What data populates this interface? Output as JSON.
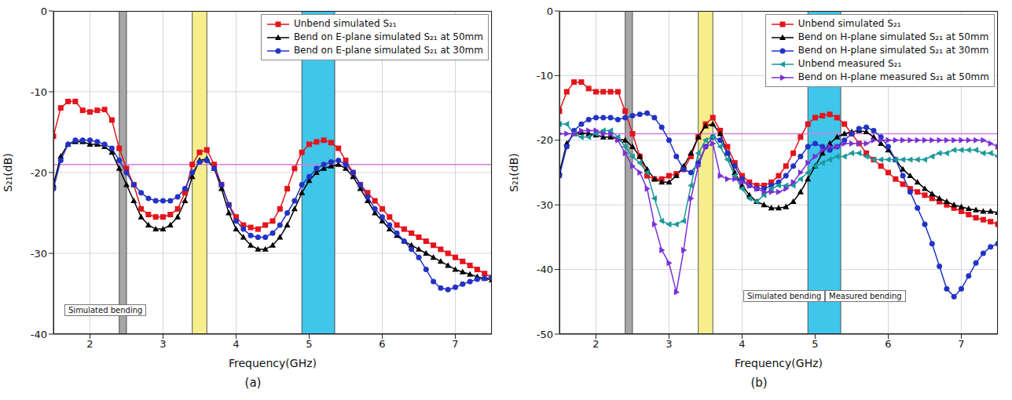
{
  "chart_data": [
    {
      "type": "line",
      "caption": "(a)",
      "xlabel": "Frequency(GHz)",
      "ylabel": "S₂₁(dB)",
      "x": [
        1.5,
        1.6,
        1.7,
        1.8,
        1.9,
        2.0,
        2.1,
        2.2,
        2.3,
        2.4,
        2.5,
        2.6,
        2.7,
        2.8,
        2.9,
        3.0,
        3.1,
        3.2,
        3.3,
        3.4,
        3.5,
        3.6,
        3.7,
        3.8,
        3.9,
        4.0,
        4.1,
        4.2,
        4.3,
        4.4,
        4.5,
        4.6,
        4.7,
        4.8,
        4.9,
        5.0,
        5.1,
        5.2,
        5.3,
        5.4,
        5.5,
        5.6,
        5.7,
        5.8,
        5.9,
        6.0,
        6.1,
        6.2,
        6.3,
        6.4,
        6.5,
        6.6,
        6.7,
        6.8,
        6.9,
        7.0,
        7.1,
        7.2,
        7.3,
        7.4,
        7.5
      ],
      "xlim": [
        1.5,
        7.5
      ],
      "xticks": [
        2,
        3,
        4,
        5,
        6,
        7
      ],
      "ylim": [
        -40,
        0
      ],
      "yticks": [
        -40,
        -30,
        -20,
        -10,
        0
      ],
      "grid": true,
      "legend": "upper right",
      "bands": [
        {
          "x0": 2.4,
          "x1": 2.5,
          "color": "#a6a6a6"
        },
        {
          "x0": 3.4,
          "x1": 3.6,
          "color": "#f6ee8c"
        },
        {
          "x0": 4.9,
          "x1": 5.35,
          "color": "#40c6ea"
        }
      ],
      "reference_lines": [
        {
          "y": -19,
          "color": "#d37fe0"
        }
      ],
      "annotations": [
        "Simulated bending"
      ],
      "series": [
        {
          "name": "Unbend simulated S₂₁",
          "color": "#e3141c",
          "marker": "square",
          "values": [
            -15.5,
            -12,
            -11.2,
            -11.2,
            -12.3,
            -12.5,
            -12.3,
            -12.2,
            -13.5,
            -17,
            -19.5,
            -21.5,
            -24.5,
            -25.2,
            -25.5,
            -25.5,
            -25.2,
            -24.5,
            -22.5,
            -19,
            -17.5,
            -17.2,
            -19,
            -21.5,
            -24,
            -25.5,
            -26.5,
            -26.8,
            -27,
            -26.5,
            -26,
            -24.5,
            -22,
            -19.5,
            -17.5,
            -16.5,
            -16.2,
            -16,
            -16.3,
            -17,
            -18.5,
            -20,
            -21.5,
            -22.5,
            -23.5,
            -24.5,
            -25.5,
            -26.5,
            -27,
            -27.5,
            -28,
            -28.5,
            -29,
            -29.5,
            -30,
            -30.5,
            -31,
            -31.5,
            -32,
            -32.5,
            -33
          ]
        },
        {
          "name": "Bend on E-plane simulated S₂₁ at 50mm",
          "color": "#000000",
          "marker": "triangle",
          "values": [
            -21.5,
            -18,
            -16.5,
            -16.2,
            -16.2,
            -16.5,
            -16.5,
            -16.8,
            -17.5,
            -19.5,
            -21.5,
            -23.5,
            -25.5,
            -26.5,
            -27,
            -27,
            -26.5,
            -25.5,
            -23.5,
            -20.5,
            -18.5,
            -18.3,
            -19.5,
            -22,
            -25,
            -27,
            -28,
            -29,
            -29.5,
            -29.5,
            -29,
            -28,
            -26.5,
            -24.5,
            -22.5,
            -21,
            -20,
            -19.5,
            -19.2,
            -19,
            -19.5,
            -20.5,
            -22,
            -23.5,
            -25,
            -26,
            -27,
            -27.8,
            -28.5,
            -29,
            -29.5,
            -30,
            -30.5,
            -31,
            -31.5,
            -32,
            -32.3,
            -32.6,
            -32.9,
            -33.1,
            -33.3
          ]
        },
        {
          "name": "Bend on E-plane simulated S₂₁ at 30mm",
          "color": "#2233c4",
          "marker": "circle",
          "values": [
            -22,
            -18.5,
            -16.5,
            -16,
            -16,
            -16,
            -16.2,
            -16.5,
            -17,
            -18.5,
            -20,
            -21.5,
            -22.5,
            -23.2,
            -23.5,
            -23.5,
            -23.5,
            -23,
            -22,
            -20,
            -18.7,
            -18.5,
            -19.5,
            -21.5,
            -24,
            -26,
            -27,
            -27.8,
            -28,
            -28,
            -27.5,
            -26.5,
            -25,
            -23.5,
            -21.5,
            -20.5,
            -19.5,
            -19,
            -18.7,
            -18.5,
            -19,
            -20,
            -21.5,
            -23,
            -24.5,
            -25.5,
            -26.5,
            -27.5,
            -28.5,
            -29.5,
            -30.5,
            -32,
            -33.5,
            -34.3,
            -34.5,
            -34.2,
            -33.8,
            -33.5,
            -33.2,
            -33.1,
            -33
          ]
        }
      ]
    },
    {
      "type": "line",
      "caption": "(b)",
      "xlabel": "Frequency(GHz)",
      "ylabel": "S₂₁(dB)",
      "x": [
        1.5,
        1.6,
        1.7,
        1.8,
        1.9,
        2.0,
        2.1,
        2.2,
        2.3,
        2.4,
        2.5,
        2.6,
        2.7,
        2.8,
        2.9,
        3.0,
        3.1,
        3.2,
        3.3,
        3.4,
        3.5,
        3.6,
        3.7,
        3.8,
        3.9,
        4.0,
        4.1,
        4.2,
        4.3,
        4.4,
        4.5,
        4.6,
        4.7,
        4.8,
        4.9,
        5.0,
        5.1,
        5.2,
        5.3,
        5.4,
        5.5,
        5.6,
        5.7,
        5.8,
        5.9,
        6.0,
        6.1,
        6.2,
        6.3,
        6.4,
        6.5,
        6.6,
        6.7,
        6.8,
        6.9,
        7.0,
        7.1,
        7.2,
        7.3,
        7.4,
        7.5
      ],
      "xlim": [
        1.5,
        7.5
      ],
      "xticks": [
        2,
        3,
        4,
        5,
        6,
        7
      ],
      "ylim": [
        -50,
        0
      ],
      "yticks": [
        -50,
        -40,
        -30,
        -20,
        -10,
        0
      ],
      "grid": true,
      "legend": "upper right",
      "bands": [
        {
          "x0": 2.4,
          "x1": 2.5,
          "color": "#a6a6a6"
        },
        {
          "x0": 3.4,
          "x1": 3.6,
          "color": "#f6ee8c"
        },
        {
          "x0": 4.9,
          "x1": 5.35,
          "color": "#40c6ea"
        }
      ],
      "reference_lines": [
        {
          "y": -19,
          "color": "#d37fe0"
        }
      ],
      "annotations": [
        "Simulated bending",
        "Measured bending"
      ],
      "series": [
        {
          "name": "Unbend simulated S₂₁",
          "color": "#e3141c",
          "marker": "square",
          "values": [
            -15.5,
            -12.5,
            -11,
            -11,
            -12,
            -12.5,
            -12.5,
            -12.5,
            -12.5,
            -15.5,
            -19,
            -22.5,
            -25.5,
            -26,
            -26,
            -25.5,
            -25.2,
            -24.5,
            -22.5,
            -19.5,
            -17.5,
            -16.5,
            -18.5,
            -21,
            -23.5,
            -25.5,
            -26.5,
            -27,
            -27,
            -26.5,
            -25.5,
            -24,
            -22,
            -19.5,
            -17.5,
            -16.5,
            -16.2,
            -16,
            -16.5,
            -17.5,
            -19,
            -20.5,
            -22,
            -23,
            -24,
            -25,
            -26,
            -26.8,
            -27.5,
            -28,
            -28.5,
            -29,
            -29.5,
            -30,
            -30.5,
            -31,
            -31.5,
            -32,
            -32.3,
            -32.6,
            -33
          ]
        },
        {
          "name": "Bend on H-plane simulated S₂₁ at 50mm",
          "color": "#000000",
          "marker": "triangle",
          "values": [
            -25,
            -20.5,
            -19,
            -18.8,
            -19,
            -19.2,
            -19.5,
            -19.5,
            -19.8,
            -20,
            -21,
            -22.5,
            -24.5,
            -26,
            -26.5,
            -26.5,
            -25.5,
            -24,
            -22,
            -19.5,
            -17.8,
            -17.5,
            -19,
            -22,
            -25,
            -27,
            -28.5,
            -29.5,
            -30,
            -30.5,
            -30.5,
            -30.3,
            -29.5,
            -28,
            -26,
            -24,
            -22,
            -20.5,
            -19.5,
            -19,
            -18.7,
            -18.5,
            -18.7,
            -19.5,
            -20.5,
            -21.5,
            -23,
            -24.5,
            -25.5,
            -26.5,
            -27.5,
            -28.3,
            -29,
            -29.5,
            -30,
            -30.3,
            -30.6,
            -30.8,
            -31,
            -31,
            -31.2
          ]
        },
        {
          "name": "Bend on H-plane simulated S₂₁ at 30mm",
          "color": "#2233c4",
          "marker": "circle",
          "values": [
            -25.5,
            -21,
            -18.5,
            -17.5,
            -16.8,
            -16.5,
            -16.5,
            -16.5,
            -16.8,
            -16.5,
            -16.2,
            -16,
            -15.8,
            -16.5,
            -18,
            -20,
            -22.5,
            -24.5,
            -25,
            -23.5,
            -21,
            -19.5,
            -20,
            -22,
            -24,
            -26,
            -27,
            -27.5,
            -27.5,
            -27,
            -26.5,
            -25.5,
            -24,
            -22.5,
            -21,
            -20.5,
            -21,
            -21.5,
            -21,
            -20,
            -19,
            -18.2,
            -18,
            -18.5,
            -19.5,
            -21,
            -23,
            -25.5,
            -28,
            -30.5,
            -33,
            -36,
            -39.5,
            -43,
            -44.2,
            -43,
            -41,
            -39,
            -37.5,
            -36.5,
            -36
          ]
        },
        {
          "name": "Unbend measured S₂₁",
          "color": "#1a9a9a",
          "marker": "triangle-left",
          "values": [
            -17.5,
            -17.5,
            -19,
            -19.5,
            -19.5,
            -19,
            -18.5,
            -18.5,
            -19.5,
            -21,
            -22.5,
            -23.5,
            -25,
            -29,
            -32.5,
            -33,
            -33,
            -32.5,
            -27,
            -22,
            -20,
            -19.5,
            -21,
            -23,
            -25.5,
            -27.5,
            -29,
            -29.5,
            -28.5,
            -27.5,
            -27,
            -27,
            -27,
            -26,
            -25,
            -24,
            -23.5,
            -23,
            -22.5,
            -22.5,
            -22,
            -22,
            -22.5,
            -23,
            -23,
            -23,
            -23,
            -23,
            -23,
            -23,
            -23,
            -22.5,
            -22,
            -22,
            -21.5,
            -21.5,
            -21.5,
            -21.5,
            -22,
            -22,
            -22.5
          ]
        },
        {
          "name": "Bend on H-plane measured S₂₁ at 50mm",
          "color": "#7b2fd6",
          "marker": "triangle-right",
          "values": [
            -19,
            -19,
            -19,
            -18.5,
            -18.5,
            -18.5,
            -19,
            -19,
            -20,
            -22,
            -24,
            -25,
            -27.5,
            -33,
            -37,
            -39,
            -43.5,
            -37,
            -29,
            -24,
            -21,
            -20.5,
            -25.5,
            -26,
            -26,
            -26.5,
            -27,
            -27.5,
            -28,
            -28,
            -28,
            -27.5,
            -26.5,
            -25,
            -23.5,
            -22.5,
            -21.5,
            -21,
            -21,
            -20.5,
            -20.5,
            -20.5,
            -20.5,
            -20,
            -20,
            -20,
            -20,
            -20,
            -20,
            -20,
            -20,
            -20,
            -20,
            -20,
            -20,
            -20,
            -20,
            -20,
            -20,
            -20.5,
            -21
          ]
        }
      ]
    }
  ]
}
